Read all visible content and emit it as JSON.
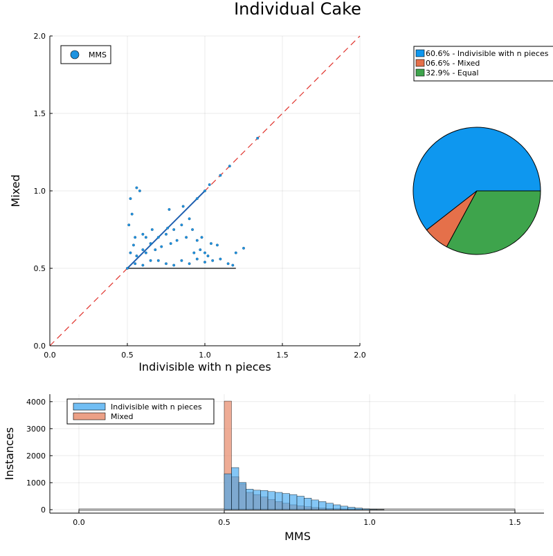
{
  "title": "Individual Cake",
  "chart_data": [
    {
      "type": "scatter",
      "xlabel": "Indivisible with n pieces",
      "ylabel": "Mixed",
      "xlim": [
        0,
        2
      ],
      "ylim": [
        0,
        2
      ],
      "xticks": [
        "0.0",
        "0.5",
        "1.0",
        "1.5",
        "2.0"
      ],
      "yticks": [
        "0.0",
        "0.5",
        "1.0",
        "1.5",
        "2.0"
      ],
      "grid": true,
      "legend": {
        "placement": "top-left",
        "entries": [
          "MMS"
        ]
      },
      "reference_line": {
        "style": "dashed",
        "color": "#e0302a",
        "from": [
          0,
          0
        ],
        "to": [
          2,
          2
        ]
      },
      "series": [
        {
          "name": "MMS",
          "color": "#1f93e0",
          "points": [
            [
              0.5,
              0.5
            ],
            [
              0.52,
              0.95
            ],
            [
              0.53,
              0.85
            ],
            [
              0.51,
              0.78
            ],
            [
              0.55,
              0.7
            ],
            [
              0.54,
              0.65
            ],
            [
              0.52,
              0.6
            ],
            [
              0.56,
              0.58
            ],
            [
              0.6,
              0.62
            ],
            [
              0.58,
              1.0
            ],
            [
              0.56,
              1.02
            ],
            [
              0.6,
              0.72
            ],
            [
              0.62,
              0.6
            ],
            [
              0.65,
              0.66
            ],
            [
              0.68,
              0.62
            ],
            [
              0.7,
              0.7
            ],
            [
              0.72,
              0.64
            ],
            [
              0.75,
              0.72
            ],
            [
              0.78,
              0.66
            ],
            [
              0.8,
              0.75
            ],
            [
              0.82,
              0.68
            ],
            [
              0.85,
              0.78
            ],
            [
              0.88,
              0.7
            ],
            [
              0.9,
              0.82
            ],
            [
              0.92,
              0.75
            ],
            [
              0.95,
              0.68
            ],
            [
              0.97,
              0.62
            ],
            [
              1.0,
              0.6
            ],
            [
              1.02,
              0.58
            ],
            [
              1.05,
              0.55
            ],
            [
              1.1,
              0.56
            ],
            [
              1.15,
              0.53
            ],
            [
              1.18,
              0.52
            ],
            [
              1.2,
              0.6
            ],
            [
              1.25,
              0.63
            ],
            [
              1.08,
              0.65
            ],
            [
              0.77,
              0.88
            ],
            [
              0.76,
              0.76
            ],
            [
              0.86,
              0.9
            ],
            [
              0.95,
              0.95
            ],
            [
              1.0,
              1.0
            ],
            [
              1.03,
              1.04
            ],
            [
              1.1,
              1.1
            ],
            [
              1.16,
              1.16
            ],
            [
              1.34,
              1.34
            ],
            [
              0.65,
              0.55
            ],
            [
              0.7,
              0.55
            ],
            [
              0.75,
              0.53
            ],
            [
              0.8,
              0.52
            ],
            [
              0.85,
              0.55
            ],
            [
              0.9,
              0.53
            ],
            [
              0.95,
              0.56
            ],
            [
              1.0,
              0.54
            ],
            [
              0.6,
              0.52
            ],
            [
              0.55,
              0.53
            ],
            [
              0.66,
              0.75
            ],
            [
              0.62,
              0.7
            ],
            [
              0.98,
              0.7
            ],
            [
              1.04,
              0.66
            ],
            [
              0.93,
              0.6
            ]
          ]
        }
      ]
    },
    {
      "type": "pie",
      "legend": {
        "placement": "top-right"
      },
      "slices": [
        {
          "label": "60.6% - Indivisible with n pieces",
          "value": 60.6,
          "color": "#0e97ef"
        },
        {
          "label": "06.6% - Mixed",
          "value": 6.6,
          "color": "#e5704a"
        },
        {
          "label": "32.9% - Equal",
          "value": 32.9,
          "color": "#3ea44c"
        }
      ]
    },
    {
      "type": "bar",
      "subtype": "histogram",
      "xlabel": "MMS",
      "ylabel": "Instances",
      "xlim": [
        -0.1,
        1.6
      ],
      "ylim": [
        0,
        4200
      ],
      "xticks": [
        "0.0",
        "0.5",
        "1.0",
        "1.5"
      ],
      "yticks": [
        "0",
        "1000",
        "2000",
        "3000",
        "4000"
      ],
      "grid": true,
      "legend": {
        "placement": "top-left"
      },
      "bin_width": 0.025,
      "bin_starts": [
        0.5,
        0.525,
        0.55,
        0.575,
        0.6,
        0.625,
        0.65,
        0.675,
        0.7,
        0.725,
        0.75,
        0.775,
        0.8,
        0.825,
        0.85,
        0.875,
        0.9,
        0.925,
        0.95,
        0.975,
        1.0,
        1.025
      ],
      "series": [
        {
          "name": "Indivisible with n pieces",
          "color": "#42a8f0",
          "values": [
            1330,
            1560,
            1010,
            760,
            720,
            710,
            670,
            640,
            600,
            560,
            500,
            430,
            360,
            300,
            240,
            180,
            130,
            90,
            60,
            30,
            15,
            5
          ]
        },
        {
          "name": "Mixed",
          "color": "#e5805e",
          "values": [
            4020,
            1220,
            960,
            640,
            560,
            470,
            380,
            300,
            240,
            180,
            140,
            110,
            80,
            60,
            40,
            30,
            20,
            12,
            8,
            4,
            2,
            1
          ]
        }
      ]
    }
  ]
}
